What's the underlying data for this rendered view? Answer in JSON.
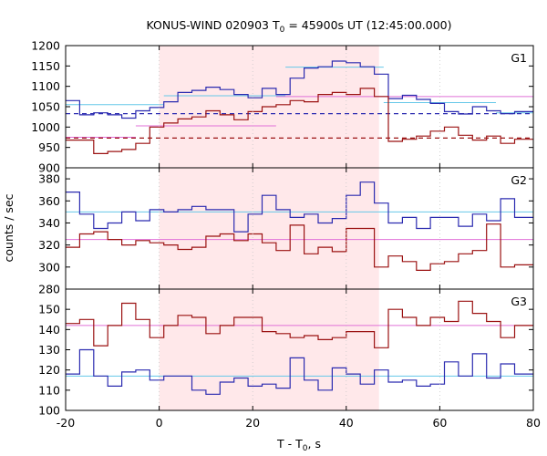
{
  "chart_data": {
    "type": "line",
    "title_main": "KONUS-WIND 020903 T",
    "title_sub": "0",
    "title_rest": " = 45900s UT (12:45:00.000)",
    "xlabel_main": "T - T",
    "xlabel_sub": "0",
    "xlabel_rest": ", s",
    "ylabel": "counts / sec",
    "xlim": [
      -20,
      80
    ],
    "xticks": [
      "-20",
      "0",
      "20",
      "40",
      "60",
      "80"
    ],
    "highlight_interval": [
      0,
      47
    ],
    "colors": {
      "blue": "#2b2bb0",
      "red": "#9b1212",
      "light_blue": "#66c8e8",
      "pink": "#e070d8",
      "shade": "#ffe8ea"
    },
    "panels": [
      {
        "label": "G1",
        "ylim": [
          900,
          1200
        ],
        "yticks": [
          "900",
          "950",
          "1000",
          "1050",
          "1100",
          "1150",
          "1200"
        ],
        "x_edges": [
          -20,
          -17,
          -14,
          -11,
          -8,
          -5,
          -2,
          1,
          4,
          7,
          10,
          13,
          16,
          19,
          22,
          25,
          28,
          31,
          34,
          37,
          40,
          43,
          46,
          49,
          52,
          55,
          58,
          61,
          64,
          67,
          70,
          73,
          76,
          79
        ],
        "series": [
          {
            "color": "blue",
            "values": [
              1065,
              1030,
              1035,
              1030,
              1022,
              1040,
              1048,
              1062,
              1085,
              1090,
              1098,
              1092,
              1080,
              1072,
              1095,
              1080,
              1120,
              1145,
              1148,
              1162,
              1158,
              1148,
              1130,
              1070,
              1078,
              1068,
              1058,
              1038,
              1032,
              1050,
              1040,
              1033,
              1038
            ]
          },
          {
            "color": "red",
            "values": [
              968,
              968,
              935,
              940,
              945,
              960,
              1000,
              1010,
              1020,
              1025,
              1040,
              1030,
              1018,
              1038,
              1050,
              1055,
              1065,
              1062,
              1080,
              1085,
              1080,
              1095,
              1075,
              965,
              970,
              978,
              990,
              1000,
              980,
              968,
              978,
              960,
              970
            ]
          }
        ],
        "fits": [
          {
            "color": "light_blue",
            "segments": [
              [
                -20,
                1,
                1055
              ],
              [
                1,
                27,
                1077
              ],
              [
                27,
                48,
                1147
              ],
              [
                48,
                72,
                1060
              ],
              [
                72,
                80,
                1035
              ]
            ]
          },
          {
            "color": "pink",
            "segments": [
              [
                -20,
                -5,
                975
              ],
              [
                -5,
                25,
                1003
              ],
              [
                25,
                80,
                1075
              ]
            ]
          }
        ],
        "reference_lines": [
          {
            "color": "blue",
            "value": 1033
          },
          {
            "color": "red",
            "value": 973
          }
        ]
      },
      {
        "label": "G2",
        "ylim": [
          280,
          390
        ],
        "yticks": [
          "280",
          "300",
          "320",
          "340",
          "360",
          "380"
        ],
        "x_edges": [
          -20,
          -17,
          -14,
          -11,
          -8,
          -5,
          -2,
          1,
          4,
          7,
          10,
          13,
          16,
          19,
          22,
          25,
          28,
          31,
          34,
          37,
          40,
          43,
          46,
          49,
          52,
          55,
          58,
          61,
          64,
          67,
          70,
          73,
          76,
          79
        ],
        "series": [
          {
            "color": "blue",
            "values": [
              368,
              348,
              335,
              340,
              350,
              342,
              352,
              350,
              352,
              355,
              352,
              352,
              332,
              348,
              365,
              352,
              345,
              348,
              340,
              344,
              365,
              377,
              358,
              340,
              345,
              335,
              345,
              345,
              337,
              348,
              342,
              362,
              345
            ]
          },
          {
            "color": "red",
            "values": [
              318,
              330,
              332,
              325,
              320,
              324,
              322,
              320,
              316,
              318,
              328,
              330,
              324,
              330,
              322,
              315,
              338,
              312,
              318,
              314,
              335,
              335,
              300,
              310,
              305,
              297,
              303,
              305,
              312,
              315,
              339,
              300,
              302
            ]
          }
        ],
        "fits": [
          {
            "color": "light_blue",
            "segments": [
              [
                -20,
                80,
                350
              ]
            ]
          },
          {
            "color": "pink",
            "segments": [
              [
                -20,
                80,
                325
              ]
            ]
          }
        ],
        "reference_lines": []
      },
      {
        "label": "G3",
        "ylim": [
          100,
          160
        ],
        "yticks": [
          "100",
          "110",
          "120",
          "130",
          "140",
          "150"
        ],
        "x_edges": [
          -20,
          -17,
          -14,
          -11,
          -8,
          -5,
          -2,
          1,
          4,
          7,
          10,
          13,
          16,
          19,
          22,
          25,
          28,
          31,
          34,
          37,
          40,
          43,
          46,
          49,
          52,
          55,
          58,
          61,
          64,
          67,
          70,
          73,
          76,
          79
        ],
        "series": [
          {
            "color": "blue",
            "values": [
              118,
              130,
              117,
              112,
              119,
              120,
              115,
              117,
              117,
              110,
              108,
              114,
              116,
              112,
              113,
              111,
              126,
              115,
              110,
              121,
              118,
              113,
              120,
              114,
              115,
              112,
              113,
              124,
              117,
              128,
              116,
              123,
              118
            ]
          },
          {
            "color": "red",
            "values": [
              143,
              145,
              132,
              142,
              153,
              145,
              136,
              142,
              147,
              146,
              138,
              142,
              146,
              146,
              139,
              138,
              136,
              137,
              135,
              136,
              139,
              139,
              131,
              150,
              146,
              142,
              146,
              144,
              154,
              148,
              144,
              136,
              142
            ]
          }
        ],
        "fits": [
          {
            "color": "light_blue",
            "segments": [
              [
                -20,
                80,
                117
              ]
            ]
          },
          {
            "color": "pink",
            "segments": [
              [
                -20,
                80,
                142
              ]
            ]
          }
        ],
        "reference_lines": []
      }
    ]
  }
}
